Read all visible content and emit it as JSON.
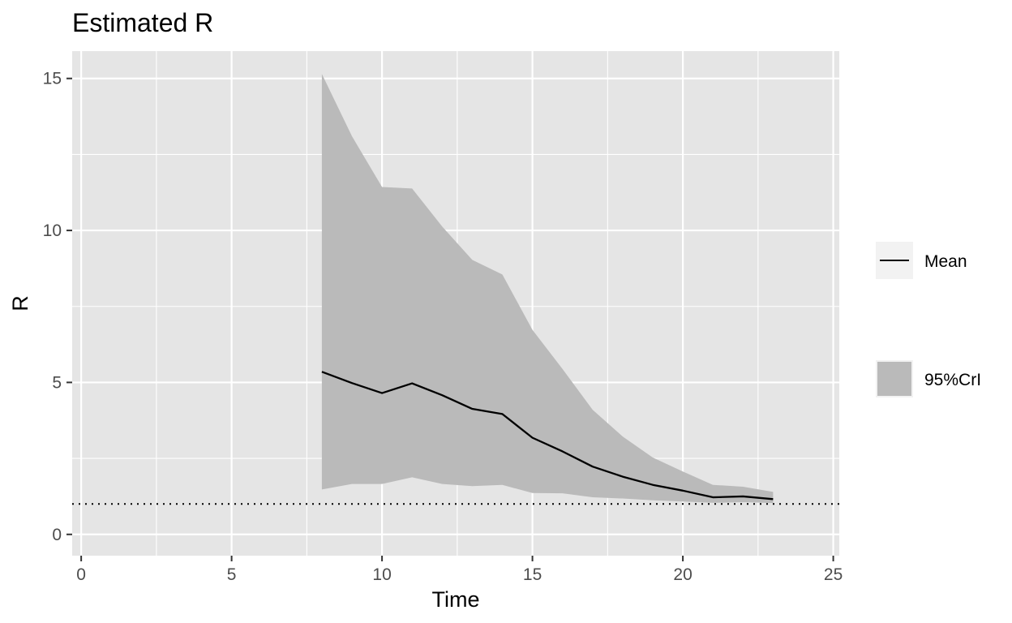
{
  "chart_data": {
    "type": "line",
    "title": "Estimated R",
    "xlabel": "Time",
    "ylabel": "R",
    "xlim": [
      -0.3,
      25.2
    ],
    "ylim": [
      -0.7,
      15.9
    ],
    "x_ticks": [
      0,
      5,
      10,
      15,
      20,
      25
    ],
    "x_minor_ticks": [
      2.5,
      7.5,
      12.5,
      17.5,
      22.5
    ],
    "y_ticks": [
      0,
      5,
      10,
      15
    ],
    "y_minor_ticks": [
      2.5,
      7.5,
      12.5
    ],
    "x_tick_labels": [
      "0",
      "5",
      "10",
      "15",
      "20",
      "25"
    ],
    "y_tick_labels": [
      "0",
      "5",
      "10",
      "15"
    ],
    "grid": true,
    "legend_position": "right",
    "reference_line": {
      "y": 1,
      "style": "dotted",
      "color": "#000000"
    },
    "x": [
      8,
      9,
      10,
      11,
      12,
      13,
      14,
      15,
      16,
      17,
      18,
      19,
      20,
      21,
      22,
      23
    ],
    "series": [
      {
        "name": "Mean",
        "kind": "line",
        "color": "#000000",
        "values": [
          5.35,
          4.98,
          4.65,
          4.97,
          4.58,
          4.13,
          3.96,
          3.18,
          2.73,
          2.23,
          1.9,
          1.63,
          1.44,
          1.22,
          1.25,
          1.16
        ]
      },
      {
        "name": "95%CrI",
        "kind": "ribbon",
        "color": "#bababa",
        "lower": [
          1.48,
          1.66,
          1.66,
          1.88,
          1.66,
          1.59,
          1.63,
          1.36,
          1.35,
          1.22,
          1.18,
          1.12,
          1.08,
          1.04,
          1.06,
          1.03
        ],
        "upper": [
          15.15,
          13.1,
          11.43,
          11.38,
          10.13,
          9.03,
          8.55,
          6.73,
          5.44,
          4.1,
          3.22,
          2.53,
          2.07,
          1.63,
          1.57,
          1.4
        ]
      }
    ],
    "legend": [
      {
        "label": "Mean",
        "key": "line"
      },
      {
        "label": "95%CrI",
        "key": "fill"
      }
    ],
    "colors": {
      "panel_background": "#e5e5e5",
      "grid": "#ffffff",
      "tick": "#333333",
      "legend_key_background": "#f2f2f2"
    }
  }
}
